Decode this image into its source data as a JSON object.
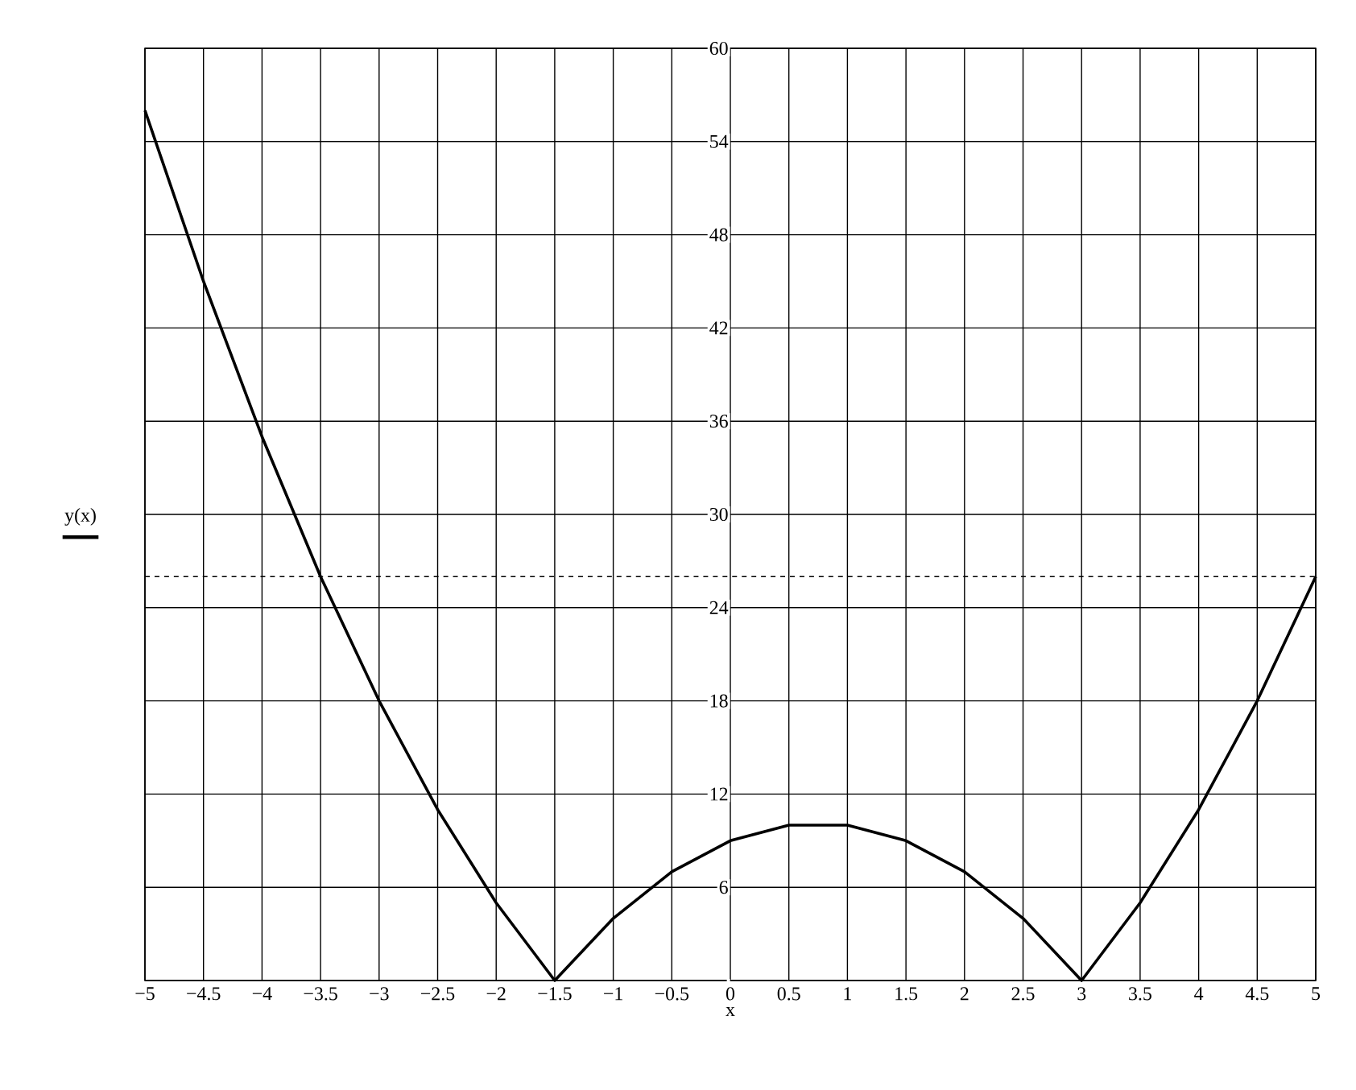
{
  "chart_data": {
    "type": "line",
    "xlabel": "x",
    "ylabel": "y(x)",
    "x": [
      -5,
      -4.5,
      -4,
      -3.5,
      -3,
      -2.5,
      -2,
      -1.5,
      -1,
      -0.5,
      0,
      0.5,
      1,
      1.5,
      2,
      2.5,
      3,
      3.5,
      4,
      4.5,
      5
    ],
    "series": [
      {
        "color": "#000000",
        "values": [
          56,
          45,
          35,
          26,
          18,
          11,
          5,
          0,
          4,
          7,
          9,
          10,
          10,
          9,
          7,
          4,
          0,
          5,
          11,
          18,
          26
        ]
      }
    ],
    "xlim": [
      -5,
      5
    ],
    "ylim": [
      0,
      60
    ],
    "xticks": [
      {
        "value": -5,
        "label": "−5"
      },
      {
        "value": -4.5,
        "label": "−4.5"
      },
      {
        "value": -4,
        "label": "−4"
      },
      {
        "value": -3.5,
        "label": "−3.5"
      },
      {
        "value": -3,
        "label": "−3"
      },
      {
        "value": -2.5,
        "label": "−2.5"
      },
      {
        "value": -2,
        "label": "−2"
      },
      {
        "value": -1.5,
        "label": "−1.5"
      },
      {
        "value": -1,
        "label": "−1"
      },
      {
        "value": -0.5,
        "label": "−0.5"
      },
      0,
      0.5,
      1,
      1.5,
      2,
      2.5,
      3,
      3.5,
      4,
      4.5,
      5
    ],
    "yticks": [
      {
        "value": 0,
        "label": null
      },
      6,
      12,
      18,
      24,
      30,
      36,
      42,
      48,
      54,
      60
    ],
    "ref_lines": [
      {
        "axis": "y",
        "value": 26,
        "line_style": "dashed",
        "color": "#000000"
      }
    ],
    "grid": true,
    "marker": "none",
    "line_style": "solid"
  }
}
